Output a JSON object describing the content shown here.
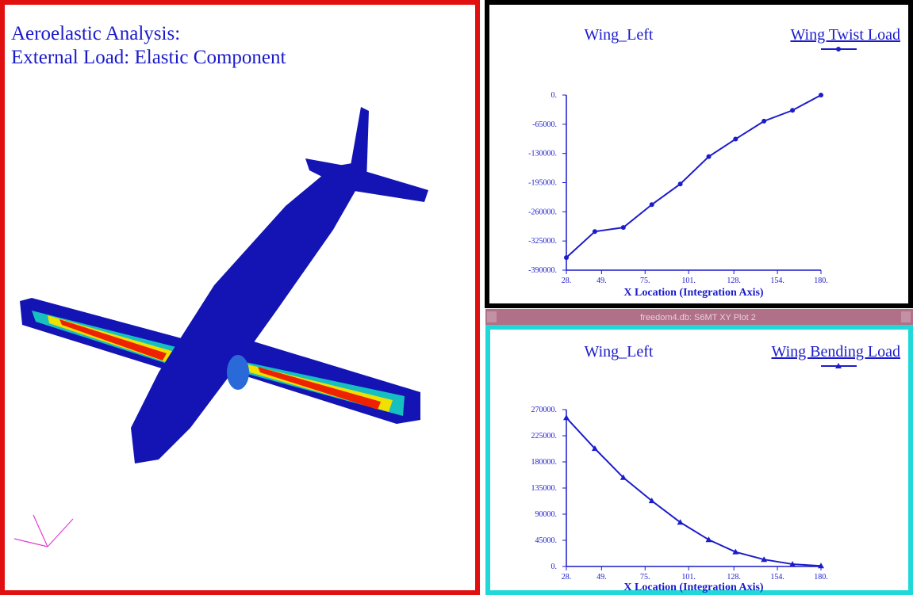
{
  "view": {
    "title_lines": [
      "Aeroelastic Analysis:",
      "External Load: Elastic Component"
    ]
  },
  "window_title": "freedom4.db: S6MT XY Plot 2",
  "chart_data": [
    {
      "type": "line",
      "subtitle": "Wing_Left",
      "x_label": "X Location (Integration Axis)",
      "x": [
        28,
        45,
        62,
        79,
        96,
        113,
        129,
        146,
        163,
        180
      ],
      "series": [
        {
          "name": "Wing Twist Load",
          "color": "#1c1ccc",
          "marker": "circle",
          "values": [
            -362000,
            -304000,
            -295000,
            -244000,
            -198000,
            -137000,
            -98000,
            -58000,
            -34000,
            0
          ]
        }
      ],
      "xlim": [
        28,
        180
      ],
      "xticks": [
        {
          "value": 28,
          "label": "28."
        },
        {
          "value": 49,
          "label": "49."
        },
        {
          "value": 75,
          "label": "75."
        },
        {
          "value": 101,
          "label": "101."
        },
        {
          "value": 128,
          "label": "128."
        },
        {
          "value": 154,
          "label": "154."
        },
        {
          "value": 180,
          "label": "180."
        }
      ],
      "ylim": [
        -390000,
        0
      ],
      "yticks": [
        {
          "value": 0,
          "label": "0."
        },
        {
          "value": -65000,
          "label": "-65000."
        },
        {
          "value": -130000,
          "label": "-130000."
        },
        {
          "value": -195000,
          "label": "-195000."
        },
        {
          "value": -260000,
          "label": "-260000."
        },
        {
          "value": -325000,
          "label": "-325000."
        },
        {
          "value": -390000,
          "label": "-390000."
        }
      ]
    },
    {
      "type": "line",
      "subtitle": "Wing_Left",
      "x_label": "X Location (Integration Axis)",
      "x": [
        28,
        45,
        62,
        79,
        96,
        113,
        129,
        146,
        163,
        180
      ],
      "series": [
        {
          "name": "Wing Bending Load",
          "color": "#1c1ccc",
          "marker": "triangle",
          "values": [
            256000,
            203000,
            153000,
            113000,
            76000,
            46000,
            25000,
            12000,
            4000,
            1000
          ]
        }
      ],
      "xlim": [
        28,
        180
      ],
      "xticks": [
        {
          "value": 28,
          "label": "28."
        },
        {
          "value": 49,
          "label": "49."
        },
        {
          "value": 75,
          "label": "75."
        },
        {
          "value": 101,
          "label": "101."
        },
        {
          "value": 128,
          "label": "128."
        },
        {
          "value": 154,
          "label": "154."
        },
        {
          "value": 180,
          "label": "180."
        }
      ],
      "ylim": [
        0,
        270000
      ],
      "yticks": [
        {
          "value": 0,
          "label": "0."
        },
        {
          "value": 45000,
          "label": "45000."
        },
        {
          "value": 90000,
          "label": "90000."
        },
        {
          "value": 135000,
          "label": "135000."
        },
        {
          "value": 180000,
          "label": "180000."
        },
        {
          "value": 225000,
          "label": "225000."
        },
        {
          "value": 270000,
          "label": "270000."
        }
      ]
    }
  ]
}
